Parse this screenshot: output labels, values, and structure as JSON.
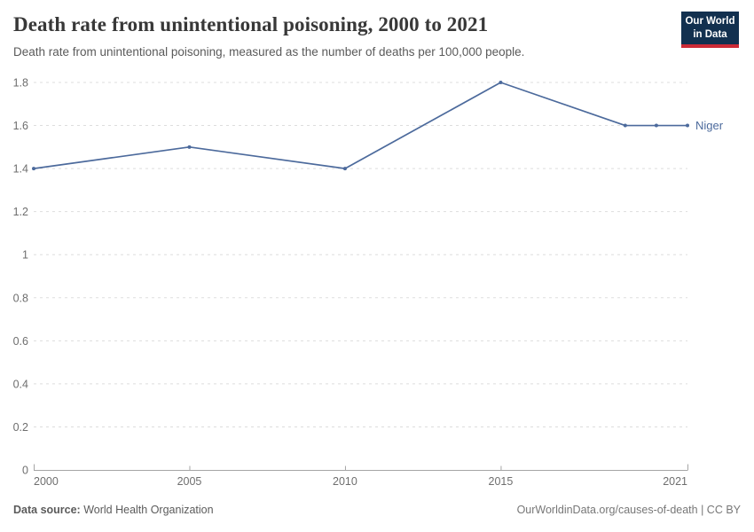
{
  "header": {
    "title": "Death rate from unintentional poisoning, 2000 to 2021",
    "subtitle": "Death rate from unintentional poisoning, measured as the number of deaths per 100,000 people.",
    "logo": {
      "line1": "Our World",
      "line2": "in Data"
    }
  },
  "chart_data": {
    "type": "line",
    "title": "Death rate from unintentional poisoning, 2000 to 2021",
    "xlabel": "",
    "ylabel": "",
    "xlim": [
      2000,
      2021
    ],
    "ylim": [
      0,
      1.8
    ],
    "x_ticks": [
      2000,
      2005,
      2010,
      2015,
      2021
    ],
    "y_ticks": [
      0,
      0.2,
      0.4,
      0.6,
      0.8,
      1,
      1.2,
      1.4,
      1.6,
      1.8
    ],
    "grid": "horizontal-dashed",
    "legend_position": "line-end-label",
    "series": [
      {
        "name": "Niger",
        "color": "#4c6a9c",
        "x": [
          2000,
          2005,
          2010,
          2015,
          2019,
          2020,
          2021
        ],
        "values": [
          1.4,
          1.5,
          1.4,
          1.8,
          1.6,
          1.6,
          1.6
        ]
      }
    ]
  },
  "footer": {
    "source_label": "Data source:",
    "source_value": " World Health Organization",
    "credit": "OurWorldinData.org/causes-of-death | CC BY"
  },
  "colors": {
    "accent_line": "#4c6a9c",
    "logo_bg": "#12304f",
    "logo_red": "#cc2a36",
    "grid": "#dddddd",
    "axis": "#a5a5a5",
    "tick_text": "#6e6e6e"
  }
}
